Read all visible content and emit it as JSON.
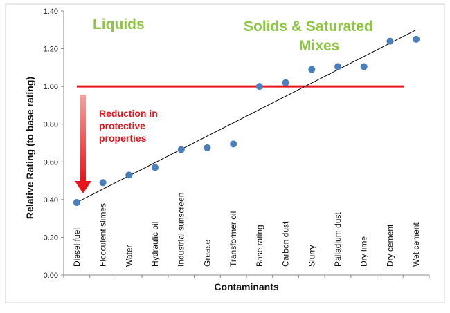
{
  "chart_data": {
    "type": "scatter",
    "xlabel": "Contaminants",
    "ylabel": "Relative Rating (to base rating)",
    "ylim": [
      0,
      1.4
    ],
    "yticks": [
      "0.00",
      "0.20",
      "0.40",
      "0.60",
      "0.80",
      "1.00",
      "1.20",
      "1.40"
    ],
    "grid": false,
    "categories": [
      "Diesel fuel",
      "Flocculent slimes",
      "Water",
      "Hydraulic oil",
      "Industrial sunscreen",
      "Grease",
      "Transformer oil",
      "Base rating",
      "Carbon dust",
      "Slurry",
      "Palladium dust",
      "Dry lime",
      "Dry cement",
      "Wet cement"
    ],
    "highlight_category": "Base rating",
    "values": [
      0.385,
      0.49,
      0.53,
      0.57,
      0.665,
      0.675,
      0.695,
      1.0,
      1.02,
      1.09,
      1.105,
      1.105,
      1.24,
      1.25
    ],
    "trendline": {
      "from": [
        "Diesel fuel",
        0.385
      ],
      "to": [
        "Wet cement",
        1.3
      ]
    },
    "reference_line": {
      "value": 1.0,
      "color": "#e8151b"
    },
    "group_labels": {
      "liquids": "Liquids",
      "solids_line1": "Solids & Saturated",
      "solids_line2": "Mixes"
    },
    "annotation": [
      "Reduction in",
      "protective",
      "properties"
    ],
    "colors": {
      "point": "#4a7ebb",
      "trendline": "#000000",
      "reference": "#e8151b",
      "group_label": "#8dc63f",
      "annotation": "#e8151b"
    }
  }
}
